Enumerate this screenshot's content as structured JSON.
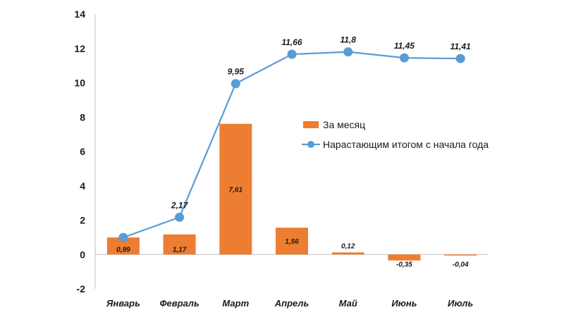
{
  "chart_data": {
    "type": "bar",
    "title": "",
    "categories": [
      "Январь",
      "Февраль",
      "Март",
      "Апрель",
      "Май",
      "Июнь",
      "Июль"
    ],
    "series": [
      {
        "name": "За месяц",
        "type": "bar",
        "color": "#ED7D31",
        "values": [
          0.99,
          1.17,
          7.61,
          1.56,
          0.12,
          -0.35,
          -0.04
        ],
        "labels": [
          "0,99",
          "1,17",
          "7,61",
          "1,56",
          "0,12",
          "-0,35",
          "-0,04"
        ]
      },
      {
        "name": "Нарастающим итогом с начала года",
        "type": "line",
        "color": "#5B9BD5",
        "values": [
          0.99,
          2.17,
          9.95,
          11.66,
          11.8,
          11.45,
          11.41
        ],
        "labels": [
          "",
          "2,17",
          "9,95",
          "11,66",
          "11,8",
          "11,45",
          "11,41"
        ]
      }
    ],
    "ylim": [
      -2,
      14
    ],
    "yticks": [
      -2,
      0,
      2,
      4,
      6,
      8,
      10,
      12,
      14
    ],
    "grid": false,
    "legend": "center-right",
    "xlabel": "",
    "ylabel": ""
  }
}
